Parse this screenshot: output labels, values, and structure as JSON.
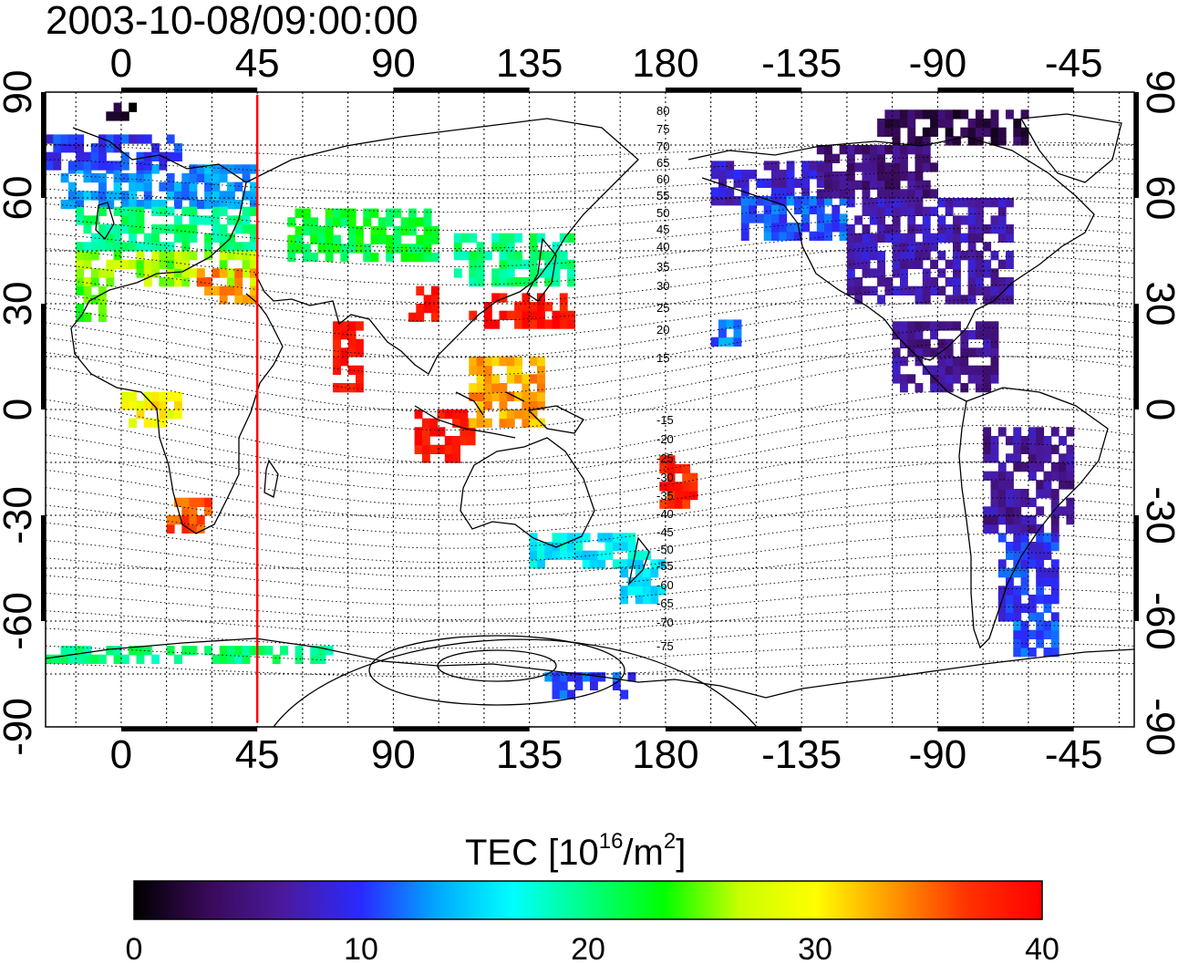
{
  "timestamp": "2003-10-08/09:00:00",
  "colorbar": {
    "title_main": "TEC  [10",
    "title_sup1": "16",
    "title_mid": "/m",
    "title_sup2": "2",
    "title_end": "]",
    "min": 0,
    "max": 40,
    "ticks": [
      "0",
      "10",
      "20",
      "30",
      "40"
    ],
    "stops": [
      "#000000",
      "#3a0a5a",
      "#4a1aa0",
      "#2a2aff",
      "#00a8ff",
      "#00ffff",
      "#00ff80",
      "#00ff00",
      "#c8ff00",
      "#ffff00",
      "#ff9900",
      "#ff3300",
      "#ff0000"
    ]
  },
  "axes": {
    "x_ticks_top": [
      "0",
      "45",
      "90",
      "135",
      "180",
      "-135",
      "-90",
      "-45"
    ],
    "x_ticks_bottom": [
      "0",
      "45",
      "90",
      "135",
      "180",
      "-135",
      "-90",
      "-45"
    ],
    "y_ticks_left": [
      "90",
      "60",
      "30",
      "0",
      "-30",
      "-60",
      "-90"
    ],
    "y_ticks_right": [
      "90",
      "60",
      "30",
      "0",
      "-30",
      "-60",
      "-90"
    ]
  },
  "meridian_marker": {
    "longitude": 45,
    "color": "#ff0000"
  },
  "mag_labels_north": [
    "80",
    "75",
    "70",
    "65",
    "60",
    "55",
    "50",
    "45",
    "40",
    "35",
    "30",
    "25",
    "20",
    "15"
  ],
  "mag_labels_south": [
    "-15",
    "-20",
    "-25",
    "-30",
    "-35",
    "-40",
    "-45",
    "-50",
    "-55",
    "-60",
    "-65",
    "-70",
    "-75"
  ],
  "chart_data": {
    "type": "heatmap",
    "projection": "equirectangular",
    "lon_range": [
      -25,
      335
    ],
    "lat_range": [
      -90,
      90
    ],
    "value_range": [
      0,
      40
    ],
    "regions": [
      {
        "lon": [
          -20,
          45
        ],
        "lat": [
          57,
          68
        ],
        "value": 13
      },
      {
        "lon": [
          -15,
          45
        ],
        "lat": [
          45,
          57
        ],
        "value": 20
      },
      {
        "lon": [
          -15,
          45
        ],
        "lat": [
          35,
          45
        ],
        "value": 26
      },
      {
        "lon": [
          25,
          45
        ],
        "lat": [
          30,
          40
        ],
        "value": 34
      },
      {
        "lon": [
          -25,
          20
        ],
        "lat": [
          68,
          78
        ],
        "value": 10
      },
      {
        "lon": [
          -5,
          5
        ],
        "lat": [
          82,
          86
        ],
        "value": 1
      },
      {
        "lon": [
          55,
          105
        ],
        "lat": [
          42,
          55
        ],
        "value": 22
      },
      {
        "lon": [
          110,
          150
        ],
        "lat": [
          35,
          50
        ],
        "value": 20
      },
      {
        "lon": [
          115,
          150
        ],
        "lat": [
          23,
          33
        ],
        "value": 39
      },
      {
        "lon": [
          95,
          105
        ],
        "lat": [
          25,
          33
        ],
        "value": 39
      },
      {
        "lon": [
          70,
          80
        ],
        "lat": [
          5,
          25
        ],
        "value": 39
      },
      {
        "lon": [
          97,
          115
        ],
        "lat": [
          -15,
          0
        ],
        "value": 39
      },
      {
        "lon": [
          115,
          140
        ],
        "lat": [
          -5,
          15
        ],
        "value": 33
      },
      {
        "lon": [
          135,
          170
        ],
        "lat": [
          -45,
          -35
        ],
        "value": 16
      },
      {
        "lon": [
          165,
          180
        ],
        "lat": [
          -55,
          -40
        ],
        "value": 16
      },
      {
        "lon": [
          178,
          190
        ],
        "lat": [
          -28,
          -15
        ],
        "value": 38
      },
      {
        "lon": [
          15,
          30
        ],
        "lat": [
          -35,
          -25
        ],
        "value": 36
      },
      {
        "lon": [
          0,
          20
        ],
        "lat": [
          -5,
          5
        ],
        "value": 30
      },
      {
        "lon": [
          -15,
          -5
        ],
        "lat": [
          25,
          35
        ],
        "value": 24
      },
      {
        "lon": [
          195,
          235
        ],
        "lat": [
          58,
          70
        ],
        "value": 8
      },
      {
        "lon": [
          205,
          240
        ],
        "lat": [
          48,
          60
        ],
        "value": 11
      },
      {
        "lon": [
          240,
          295
        ],
        "lat": [
          30,
          60
        ],
        "value": 7
      },
      {
        "lon": [
          230,
          270
        ],
        "lat": [
          60,
          75
        ],
        "value": 5
      },
      {
        "lon": [
          250,
          300
        ],
        "lat": [
          75,
          85
        ],
        "value": 3
      },
      {
        "lon": [
          195,
          205
        ],
        "lat": [
          18,
          25
        ],
        "value": 12
      },
      {
        "lon": [
          255,
          290
        ],
        "lat": [
          5,
          25
        ],
        "value": 6
      },
      {
        "lon": [
          285,
          315
        ],
        "lat": [
          -35,
          -5
        ],
        "value": 6
      },
      {
        "lon": [
          290,
          310
        ],
        "lat": [
          -60,
          -35
        ],
        "value": 10
      },
      {
        "lon": [
          295,
          310
        ],
        "lat": [
          -70,
          -60
        ],
        "value": 11
      },
      {
        "lon": [
          -25,
          70
        ],
        "lat": [
          -72,
          -68
        ],
        "value": 20
      },
      {
        "lon": [
          140,
          170
        ],
        "lat": [
          -82,
          -76
        ],
        "value": 11
      }
    ]
  }
}
